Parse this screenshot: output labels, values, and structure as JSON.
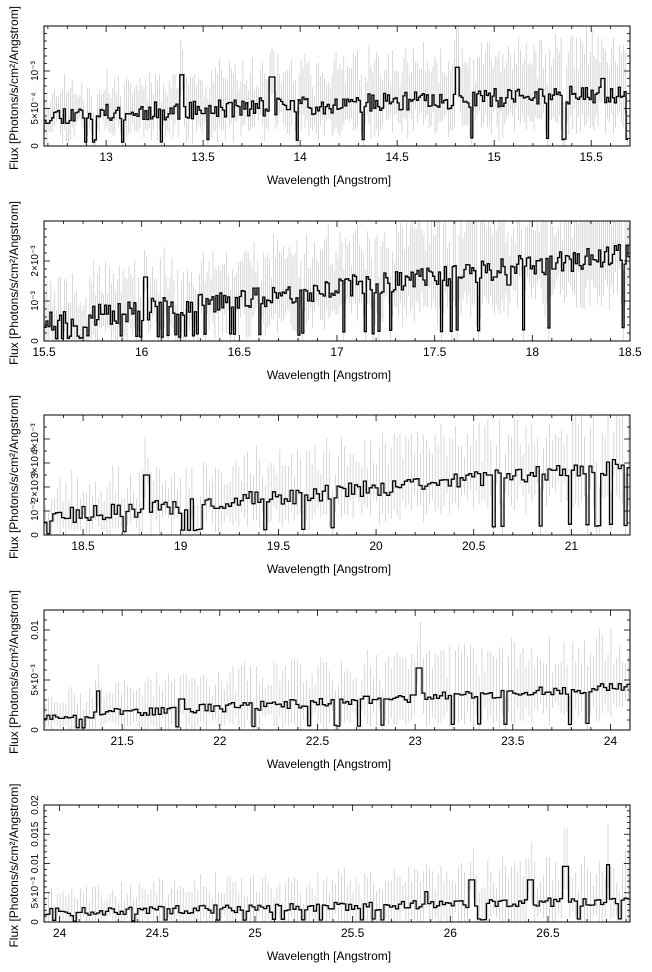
{
  "chart_data": [
    {
      "type": "line",
      "xlabel": "Wavelength [Angstrom]",
      "ylabel": "Flux [Photons/s/cm²/Angstrom]",
      "xlim": [
        12.68,
        15.7
      ],
      "ylim": [
        0,
        0.0016
      ],
      "xticks": [
        13,
        13.5,
        14,
        14.5,
        15,
        15.5
      ],
      "xtick_labels": [
        "13",
        "13.5",
        "14",
        "14.5",
        "15",
        "15.5"
      ],
      "yticks": [
        0,
        0.0005,
        0.001
      ],
      "ytick_labels": [
        "0",
        "5×10⁻⁴",
        "10⁻³"
      ],
      "x_start": 12.68,
      "bin": 0.01,
      "seed": 11,
      "y_base": 0.00037,
      "y_slope": 3e-05,
      "y_noise": 0.00025,
      "err_scale": 0.00045,
      "spikes": [
        [
          13.38,
          0.00095
        ],
        [
          13.85,
          0.00092
        ],
        [
          14.8,
          0.00105
        ],
        [
          15.55,
          0.0009
        ]
      ]
    },
    {
      "type": "line",
      "xlabel": "Wavelength [Angstrom]",
      "ylabel": "Flux [Photons/s/cm²/Angstrom]",
      "xlim": [
        15.5,
        18.5
      ],
      "ylim": [
        0,
        0.003
      ],
      "xticks": [
        15.5,
        16,
        16.5,
        17,
        17.5,
        18,
        18.5
      ],
      "xtick_labels": [
        "15.5",
        "16",
        "16.5",
        "17",
        "17.5",
        "18",
        "18.5"
      ],
      "yticks": [
        0,
        0.001,
        0.002
      ],
      "ytick_labels": [
        "0",
        "10⁻³",
        "2×10⁻³"
      ],
      "x_start": 15.5,
      "bin": 0.01,
      "seed": 23,
      "y_base": 0.0004,
      "y_slope": 0.00017,
      "y_noise": 0.00055,
      "err_scale": 0.0011,
      "spikes": [
        [
          16.02,
          0.0016
        ],
        [
          17.8,
          0.0016
        ],
        [
          18.1,
          0.0018
        ],
        [
          17.88,
          0.0014
        ]
      ]
    },
    {
      "type": "line",
      "xlabel": "Wavelength [Angstrom]",
      "ylabel": "Flux [Photons/s/cm²/Angstrom]",
      "xlim": [
        18.3,
        21.3
      ],
      "ylim": [
        0,
        0.005
      ],
      "xticks": [
        18.5,
        19,
        19.5,
        20,
        20.5,
        21
      ],
      "xtick_labels": [
        "18.5",
        "19",
        "19.5",
        "20",
        "20.5",
        "21"
      ],
      "yticks": [
        0,
        0.001,
        0.002,
        0.003,
        0.004
      ],
      "ytick_labels": [
        "0",
        "10⁻³",
        "2×10⁻³",
        "3×10⁻³",
        "4×10⁻³"
      ],
      "x_start": 18.3,
      "bin": 0.015,
      "seed": 37,
      "y_base": 0.0006,
      "y_slope": 0.00022,
      "y_noise": 0.0007,
      "err_scale": 0.0015,
      "spikes": [
        [
          18.82,
          0.0025
        ],
        [
          20.35,
          0.0023
        ],
        [
          20.9,
          0.0027
        ],
        [
          20.58,
          0.0025
        ]
      ]
    },
    {
      "type": "line",
      "xlabel": "Wavelength [Angstrom]",
      "ylabel": "Flux [Photons/s/cm²/Angstrom]",
      "xlim": [
        21.1,
        24.1
      ],
      "ylim": [
        0,
        0.012
      ],
      "xticks": [
        21.5,
        22,
        22.5,
        23,
        23.5,
        24
      ],
      "xtick_labels": [
        "21.5",
        "22",
        "22.5",
        "23",
        "23.5",
        "24"
      ],
      "yticks": [
        0,
        0.005,
        0.01
      ],
      "ytick_labels": [
        "0",
        "5×10⁻³",
        "0.01"
      ],
      "x_start": 21.1,
      "bin": 0.015,
      "seed": 53,
      "y_base": 0.0012,
      "y_slope": 0.0003,
      "y_noise": 0.0009,
      "err_scale": 0.0032,
      "spikes": [
        [
          21.37,
          0.0039
        ],
        [
          21.8,
          0.0031
        ],
        [
          22.85,
          0.0031
        ],
        [
          23.02,
          0.0062
        ],
        [
          22.98,
          0.0035
        ]
      ]
    },
    {
      "type": "line",
      "xlabel": "Wavelength [Angstrom]",
      "ylabel": "Flux [Photons/s/cm²/Angstrom]",
      "xlim": [
        23.92,
        26.92
      ],
      "ylim": [
        0,
        0.02
      ],
      "xticks": [
        24,
        24.5,
        25,
        25.5,
        26,
        26.5
      ],
      "xtick_labels": [
        "24",
        "24.5",
        "25",
        "25.5",
        "26",
        "26.5"
      ],
      "yticks": [
        0,
        0.005,
        0.01,
        0.015,
        0.02
      ],
      "ytick_labels": [
        "0",
        "5×10⁻³",
        "0.01",
        "0.015",
        "0.02"
      ],
      "x_start": 23.92,
      "bin": 0.015,
      "seed": 71,
      "y_base": 0.0014,
      "y_slope": 0.0002,
      "y_noise": 0.0015,
      "err_scale": 0.0045,
      "spikes": [
        [
          25.87,
          0.0052
        ],
        [
          26.58,
          0.0095
        ],
        [
          26.8,
          0.0098
        ],
        [
          26.1,
          0.0072
        ],
        [
          26.4,
          0.0072
        ]
      ]
    }
  ]
}
